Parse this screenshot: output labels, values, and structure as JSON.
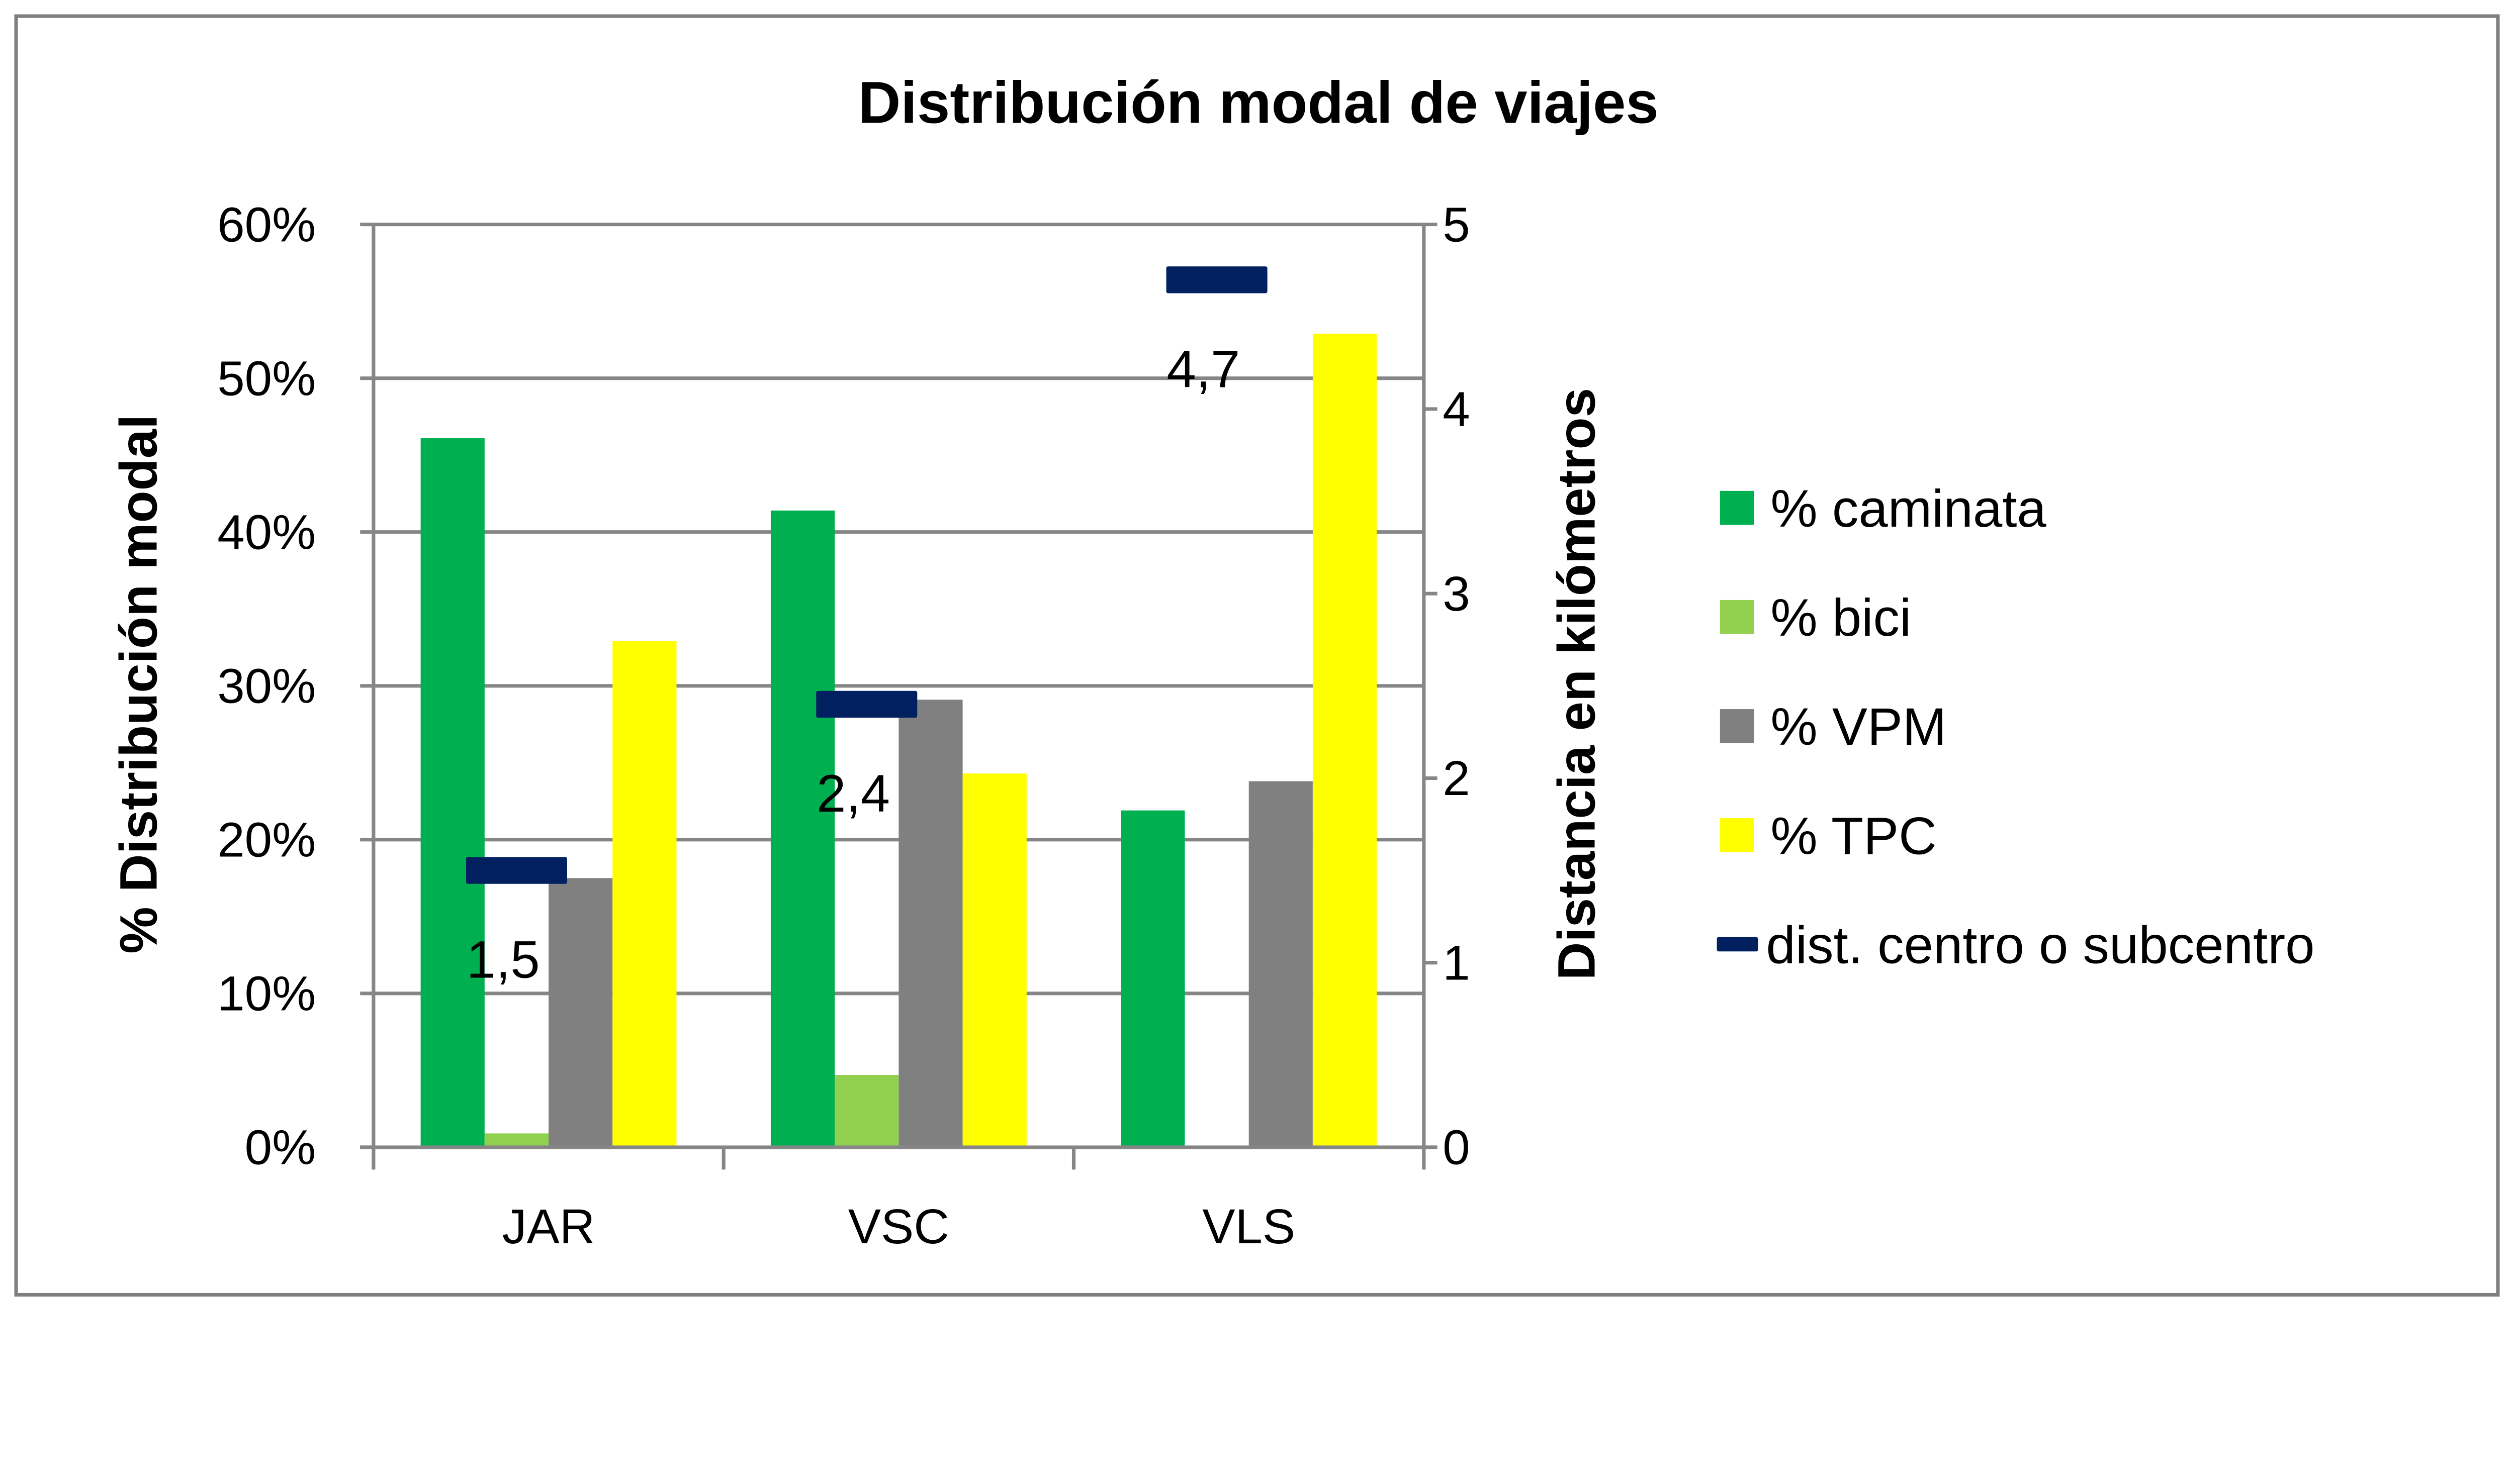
{
  "chart_data": {
    "type": "bar",
    "title": "Distribución modal de viajes",
    "categories": [
      "JAR",
      "VSC",
      "VLS"
    ],
    "series": [
      {
        "name": "% caminata",
        "values": [
          46.1,
          41.4,
          21.9
        ],
        "color": "#00B050"
      },
      {
        "name": "% bici",
        "values": [
          0.9,
          4.7,
          0
        ],
        "color": "#92D050"
      },
      {
        "name": "% VPM",
        "values": [
          17.5,
          29.1,
          23.8
        ],
        "color": "#808080"
      },
      {
        "name": "% TPC",
        "values": [
          32.9,
          24.3,
          52.9
        ],
        "color": "#FFFF00"
      }
    ],
    "secondary_series": {
      "name": "dist. centro o subcentro",
      "type": "marker",
      "values": [
        1.5,
        2.4,
        4.7
      ],
      "labels": [
        "1,5",
        "2,4",
        "4,7"
      ],
      "color": "#002060",
      "axis": "right"
    },
    "ylabel": "% Distribución modal",
    "y2label": "Distancia en kilómetros",
    "ylim": [
      0,
      60
    ],
    "y2lim": [
      0,
      5
    ],
    "yticks": [
      "0%",
      "10%",
      "20%",
      "30%",
      "40%",
      "50%",
      "60%"
    ],
    "y2ticks": [
      "0",
      "1",
      "2",
      "3",
      "4",
      "5"
    ],
    "grid": true,
    "legend_position": "right"
  }
}
